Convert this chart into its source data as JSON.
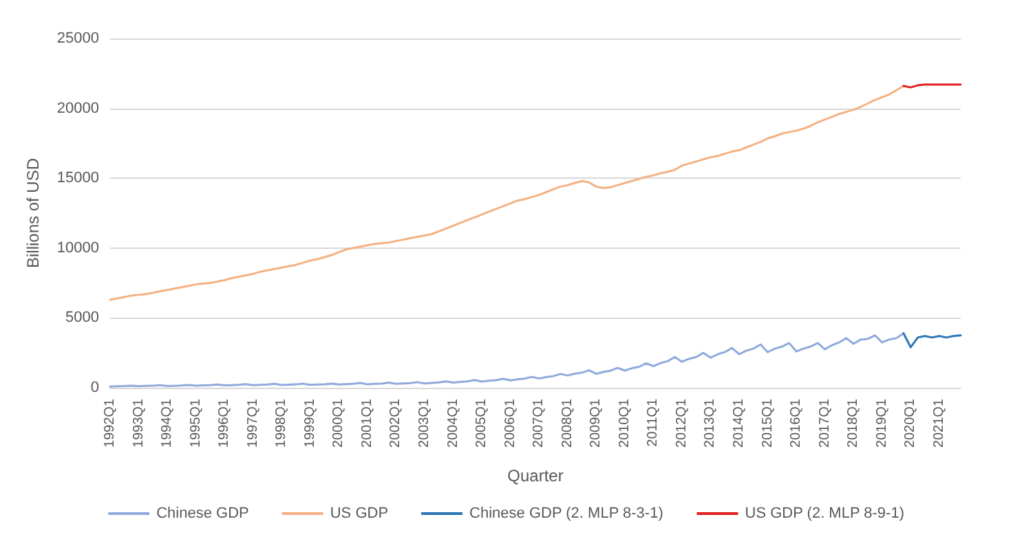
{
  "chart_data": {
    "type": "line",
    "xlabel": "Quarter",
    "ylabel": "Billions of USD",
    "categories": [
      "1992Q1",
      null,
      null,
      null,
      "1993Q1",
      null,
      null,
      null,
      "1994Q1",
      null,
      null,
      null,
      "1995Q1",
      null,
      null,
      null,
      "1996Q1",
      null,
      null,
      null,
      "1997Q1",
      null,
      null,
      null,
      "1998Q1",
      null,
      null,
      null,
      "1999Q1",
      null,
      null,
      null,
      "2000Q1",
      null,
      null,
      null,
      "2001Q1",
      null,
      null,
      null,
      "2002Q1",
      null,
      null,
      null,
      "2003Q1",
      null,
      null,
      null,
      "2004Q1",
      null,
      null,
      null,
      "2005Q1",
      null,
      null,
      null,
      "2006Q1",
      null,
      null,
      null,
      "2007Q1",
      null,
      null,
      null,
      "2008Q1",
      null,
      null,
      null,
      "2009Q1",
      null,
      null,
      null,
      "2010Q1",
      null,
      null,
      null,
      "2011Q1",
      null,
      null,
      null,
      "2012Q1",
      null,
      null,
      null,
      "2013Q1",
      null,
      null,
      null,
      "2014Q1",
      null,
      null,
      null,
      "2015Q1",
      null,
      null,
      null,
      "2016Q1",
      null,
      null,
      null,
      "2017Q1",
      null,
      null,
      null,
      "2018Q1",
      null,
      null,
      null,
      "2019Q1",
      null,
      null,
      null,
      "2020Q1",
      null,
      null,
      null,
      "2021Q1",
      null,
      null,
      null
    ],
    "series": [
      {
        "name": "Chinese GDP",
        "color": "#8faadc",
        "values": [
          90,
          110,
          120,
          150,
          110,
          130,
          150,
          180,
          120,
          140,
          160,
          200,
          150,
          170,
          190,
          230,
          170,
          190,
          210,
          260,
          190,
          210,
          230,
          280,
          200,
          220,
          240,
          290,
          210,
          230,
          250,
          300,
          230,
          260,
          280,
          340,
          250,
          280,
          300,
          370,
          280,
          310,
          330,
          400,
          310,
          350,
          380,
          460,
          370,
          420,
          460,
          550,
          440,
          500,
          540,
          640,
          530,
          600,
          650,
          780,
          660,
          760,
          830,
          990,
          880,
          1010,
          1080,
          1250,
          1000,
          1130,
          1220,
          1420,
          1230,
          1400,
          1500,
          1750,
          1550,
          1770,
          1900,
          2200,
          1860,
          2070,
          2200,
          2500,
          2150,
          2400,
          2550,
          2850,
          2400,
          2650,
          2800,
          3100,
          2550,
          2800,
          2950,
          3200,
          2600,
          2800,
          2950,
          3200,
          2750,
          3050,
          3250,
          3550,
          3150,
          3450,
          3500,
          3750,
          3250,
          3450,
          3550,
          3900,
          null,
          null,
          null,
          null,
          null,
          null,
          null,
          null
        ]
      },
      {
        "name": "US GDP",
        "color": "#f4b183",
        "values": [
          6300,
          6400,
          6500,
          6600,
          6650,
          6700,
          6800,
          6900,
          7000,
          7100,
          7200,
          7300,
          7400,
          7450,
          7500,
          7600,
          7700,
          7850,
          7950,
          8050,
          8150,
          8300,
          8400,
          8500,
          8600,
          8700,
          8800,
          8950,
          9100,
          9200,
          9350,
          9500,
          9700,
          9900,
          10000,
          10100,
          10200,
          10300,
          10350,
          10400,
          10500,
          10600,
          10700,
          10800,
          10900,
          11000,
          11200,
          11400,
          11600,
          11800,
          12000,
          12200,
          12400,
          12600,
          12800,
          13000,
          13200,
          13400,
          13500,
          13650,
          13800,
          14000,
          14200,
          14400,
          14500,
          14650,
          14800,
          14700,
          14400,
          14300,
          14350,
          14500,
          14650,
          14800,
          14950,
          15100,
          15200,
          15350,
          15450,
          15600,
          15900,
          16050,
          16200,
          16350,
          16500,
          16600,
          16750,
          16900,
          17000,
          17200,
          17400,
          17600,
          17850,
          18000,
          18200,
          18300,
          18400,
          18550,
          18750,
          19000,
          19200,
          19400,
          19600,
          19750,
          19900,
          20100,
          20350,
          20600,
          20800,
          21000,
          21300,
          21600,
          null,
          null,
          null,
          null,
          null,
          null,
          null,
          null
        ]
      },
      {
        "name": "Chinese GDP (2. MLP 8-3-1)",
        "color": "#2e75b6",
        "values": [
          null,
          null,
          null,
          null,
          null,
          null,
          null,
          null,
          null,
          null,
          null,
          null,
          null,
          null,
          null,
          null,
          null,
          null,
          null,
          null,
          null,
          null,
          null,
          null,
          null,
          null,
          null,
          null,
          null,
          null,
          null,
          null,
          null,
          null,
          null,
          null,
          null,
          null,
          null,
          null,
          null,
          null,
          null,
          null,
          null,
          null,
          null,
          null,
          null,
          null,
          null,
          null,
          null,
          null,
          null,
          null,
          null,
          null,
          null,
          null,
          null,
          null,
          null,
          null,
          null,
          null,
          null,
          null,
          null,
          null,
          null,
          null,
          null,
          null,
          null,
          null,
          null,
          null,
          null,
          null,
          null,
          null,
          null,
          null,
          null,
          null,
          null,
          null,
          null,
          null,
          null,
          null,
          null,
          null,
          null,
          null,
          null,
          null,
          null,
          null,
          null,
          null,
          null,
          null,
          null,
          null,
          null,
          null,
          null,
          null,
          null,
          3900,
          2900,
          3600,
          3700,
          3600,
          3700,
          3600,
          3700,
          3750
        ]
      },
      {
        "name": "US GDP (2. MLP 8-9-1)",
        "color": "#e02020",
        "values": [
          null,
          null,
          null,
          null,
          null,
          null,
          null,
          null,
          null,
          null,
          null,
          null,
          null,
          null,
          null,
          null,
          null,
          null,
          null,
          null,
          null,
          null,
          null,
          null,
          null,
          null,
          null,
          null,
          null,
          null,
          null,
          null,
          null,
          null,
          null,
          null,
          null,
          null,
          null,
          null,
          null,
          null,
          null,
          null,
          null,
          null,
          null,
          null,
          null,
          null,
          null,
          null,
          null,
          null,
          null,
          null,
          null,
          null,
          null,
          null,
          null,
          null,
          null,
          null,
          null,
          null,
          null,
          null,
          null,
          null,
          null,
          null,
          null,
          null,
          null,
          null,
          null,
          null,
          null,
          null,
          null,
          null,
          null,
          null,
          null,
          null,
          null,
          null,
          null,
          null,
          null,
          null,
          null,
          null,
          null,
          null,
          null,
          null,
          null,
          null,
          null,
          null,
          null,
          null,
          null,
          null,
          null,
          null,
          null,
          null,
          null,
          21600,
          21500,
          21650,
          21700,
          21700,
          21700,
          21700,
          21700,
          21700
        ]
      }
    ],
    "ylim": [
      0,
      25000
    ],
    "yticks": [
      0,
      5000,
      10000,
      15000,
      20000,
      25000
    ],
    "grid": "y",
    "legend": "bottom",
    "marker": "none",
    "line_style": "solid"
  }
}
